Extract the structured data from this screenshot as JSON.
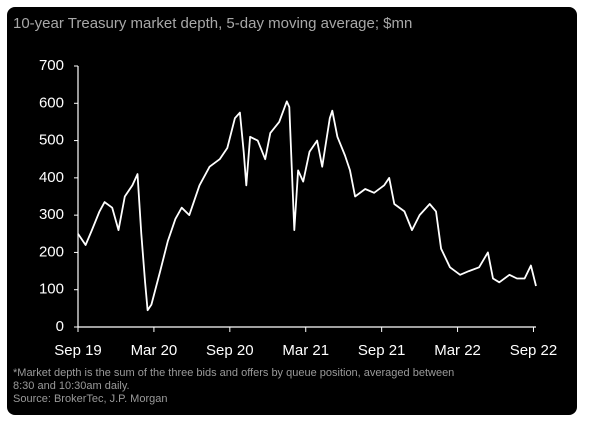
{
  "chart_data": {
    "type": "line",
    "title": "10-year Treasury market depth, 5-day moving average; $mn",
    "footnotes": [
      "*Market depth is the sum of the three bids and offers by queue position, averaged between",
      "8:30 and 10:30am daily.",
      "Source: BrokerTec, J.P. Morgan"
    ],
    "x": [
      0,
      0.6,
      1.1,
      1.7,
      2.1,
      2.7,
      3.2,
      3.7,
      4.3,
      4.7,
      5.0,
      5.3,
      5.5,
      5.8,
      6.5,
      7.1,
      7.7,
      8.2,
      8.8,
      9.6,
      10.4,
      11.2,
      11.8,
      12.4,
      12.8,
      13.1,
      13.3,
      13.6,
      14.2,
      14.8,
      15.2,
      15.9,
      16.5,
      16.7,
      17.1,
      17.4,
      17.8,
      18.3,
      18.9,
      19.3,
      19.9,
      20.1,
      20.5,
      21.1,
      21.5,
      21.9,
      22.7,
      23.4,
      24.2,
      24.6,
      25.0,
      25.8,
      26.4,
      27.0,
      27.8,
      28.3,
      28.7,
      29.4,
      30.2,
      30.9,
      31.7,
      32.4,
      32.8,
      33.3,
      34.1,
      34.7,
      35.3,
      35.8,
      36.2
    ],
    "values": [
      250,
      220,
      260,
      310,
      335,
      320,
      260,
      350,
      380,
      410,
      250,
      120,
      45,
      60,
      150,
      230,
      290,
      320,
      300,
      380,
      430,
      450,
      480,
      560,
      575,
      470,
      380,
      510,
      500,
      450,
      520,
      550,
      605,
      590,
      260,
      420,
      390,
      470,
      500,
      430,
      560,
      580,
      510,
      460,
      420,
      350,
      370,
      360,
      380,
      400,
      330,
      310,
      260,
      300,
      330,
      310,
      210,
      160,
      140,
      150,
      160,
      200,
      130,
      120,
      140,
      130,
      130,
      165,
      110
    ],
    "color": "#ffffff",
    "xlim": [
      0,
      36.2
    ],
    "xticks": [
      {
        "value": 0,
        "label": "Sep 19"
      },
      {
        "value": 6,
        "label": "Mar 20"
      },
      {
        "value": 12,
        "label": "Sep 20"
      },
      {
        "value": 18,
        "label": "Mar 21"
      },
      {
        "value": 24,
        "label": "Sep 21"
      },
      {
        "value": 30,
        "label": "Mar 22"
      },
      {
        "value": 36,
        "label": "Sep 22"
      }
    ],
    "ylim": [
      0,
      700
    ],
    "yticks": [
      0,
      100,
      200,
      300,
      400,
      500,
      600,
      700
    ],
    "grid": false
  }
}
